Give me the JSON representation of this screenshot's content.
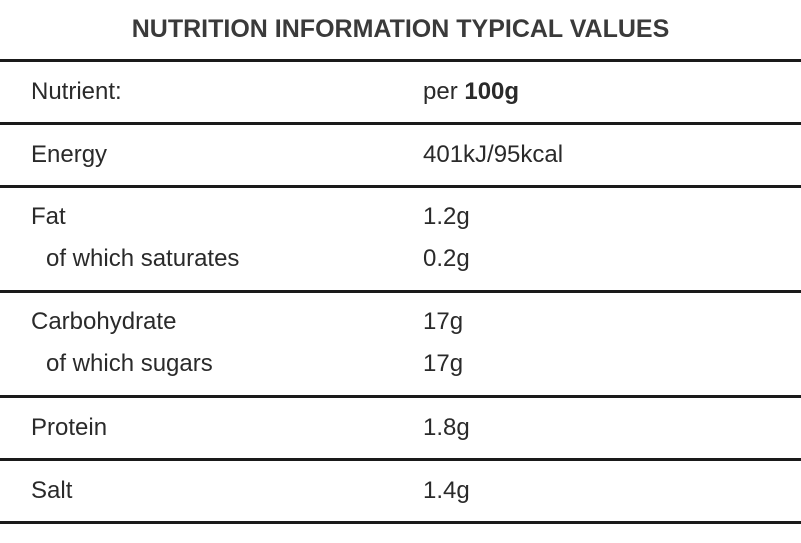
{
  "title": "NUTRITION INFORMATION TYPICAL VALUES",
  "header": {
    "nutrient_label": "Nutrient:",
    "per_prefix": "per",
    "per_amount": "100g"
  },
  "rows": [
    {
      "name": "Energy",
      "value": "401kJ/95kcal"
    },
    {
      "name": "Fat",
      "value": "1.2g",
      "sub_name": "of which saturates",
      "sub_value": "0.2g"
    },
    {
      "name": "Carbohydrate",
      "value": "17g",
      "sub_name": "of which sugars",
      "sub_value": "17g"
    },
    {
      "name": "Protein",
      "value": "1.8g"
    },
    {
      "name": "Salt",
      "value": "1.4g"
    }
  ]
}
